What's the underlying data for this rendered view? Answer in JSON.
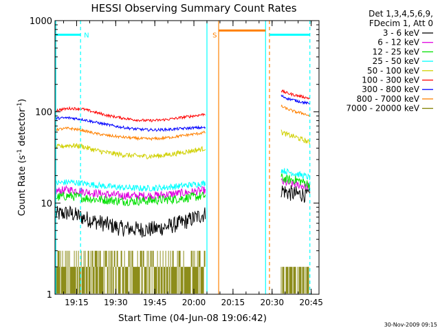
{
  "chart_data": {
    "type": "line",
    "title": "HESSI Observing Summary Count Rates",
    "xlabel": "Start Time (04-Jun-08 19:06:42)",
    "ylabel_main": "Count Rate (s",
    "ylabel_sup1": "-1",
    "ylabel_mid": " detector",
    "ylabel_sup2": "-1",
    "ylabel_end": ")",
    "y_scale": "log",
    "ylim": [
      1,
      1000
    ],
    "xlim_minutes": [
      1146.7,
      1248
    ],
    "x_ticks": [
      {
        "label": "19:15",
        "minute": 1155
      },
      {
        "label": "19:30",
        "minute": 1170
      },
      {
        "label": "19:45",
        "minute": 1185
      },
      {
        "label": "20:00",
        "minute": 1200
      },
      {
        "label": "20:15",
        "minute": 1215
      },
      {
        "label": "20:30",
        "minute": 1230
      },
      {
        "label": "20:45",
        "minute": 1245
      }
    ],
    "y_ticks": [
      {
        "label": "1",
        "value": 1
      },
      {
        "label": "10",
        "value": 10
      },
      {
        "label": "100",
        "value": 100
      },
      {
        "label": "1000",
        "value": 1000
      }
    ],
    "legend_placement": "right",
    "legend_header": [
      "Det 1,3,4,5,6,9,",
      "FDecim 1, Att 0"
    ],
    "series": [
      {
        "name": "3 - 6 keV",
        "color": "#000000",
        "segments": [
          {
            "x": [
              1147,
              1152,
              1157,
              1162,
              1167,
              1172,
              1177,
              1182,
              1187,
              1192,
              1197,
              1202,
              1204.5
            ],
            "y": [
              7.5,
              7.8,
              7.0,
              6.3,
              5.8,
              5.3,
              5.2,
              5.1,
              5.3,
              5.7,
              6.3,
              7.2,
              7.6
            ]
          },
          {
            "x": [
              1233.5,
              1236,
              1239,
              1242,
              1244.5
            ],
            "y": [
              14,
              13,
              12.5,
              12.5,
              12
            ]
          }
        ]
      },
      {
        "name": "6 - 12 keV",
        "color": "#e000e0",
        "segments": [
          {
            "x": [
              1147,
              1152,
              1157,
              1162,
              1167,
              1172,
              1177,
              1182,
              1187,
              1192,
              1197,
              1202,
              1204.5
            ],
            "y": [
              13.5,
              14,
              13.5,
              12.8,
              12.4,
              12.1,
              12.0,
              12.0,
              12.2,
              12.6,
              13.0,
              13.5,
              13.8
            ]
          },
          {
            "x": [
              1233.5,
              1236,
              1239,
              1242,
              1244.5
            ],
            "y": [
              17,
              16.5,
              16,
              15.5,
              15
            ]
          }
        ]
      },
      {
        "name": "12 - 25 keV",
        "color": "#00e000",
        "segments": [
          {
            "x": [
              1147,
              1152,
              1157,
              1162,
              1167,
              1172,
              1177,
              1182,
              1187,
              1192,
              1197,
              1202,
              1204.5
            ],
            "y": [
              11.5,
              12,
              11.5,
              11,
              10.8,
              10.5,
              10.5,
              10.6,
              10.8,
              11.0,
              11.4,
              11.8,
              12.0
            ]
          },
          {
            "x": [
              1233.5,
              1236,
              1239,
              1242,
              1244.5
            ],
            "y": [
              19,
              18,
              18,
              17,
              16
            ]
          }
        ]
      },
      {
        "name": "25 - 50 keV",
        "color": "#00ffff",
        "segments": [
          {
            "x": [
              1147,
              1152,
              1157,
              1162,
              1167,
              1172,
              1177,
              1182,
              1187,
              1192,
              1197,
              1202,
              1204.5
            ],
            "y": [
              16.5,
              17,
              16.5,
              15.8,
              15.2,
              14.8,
              14.6,
              14.5,
              14.7,
              15.1,
              15.6,
              16.2,
              16.5
            ]
          },
          {
            "x": [
              1233.5,
              1236,
              1239,
              1242,
              1244.5
            ],
            "y": [
              23,
              22,
              21,
              20,
              19
            ]
          }
        ]
      },
      {
        "name": "50 - 100 keV",
        "color": "#d0d000",
        "segments": [
          {
            "x": [
              1147,
              1152,
              1157,
              1162,
              1167,
              1172,
              1177,
              1182,
              1187,
              1192,
              1197,
              1202,
              1204.5
            ],
            "y": [
              41,
              43,
              42,
              38,
              35.5,
              34,
              33,
              32.5,
              33,
              34.5,
              36.5,
              38.5,
              40
            ]
          },
          {
            "x": [
              1233.5,
              1236,
              1239,
              1242,
              1244.5
            ],
            "y": [
              60,
              56,
              53,
              49,
              46
            ]
          }
        ]
      },
      {
        "name": "100 - 300 keV",
        "color": "#ff0000",
        "segments": [
          {
            "x": [
              1147,
              1152,
              1157,
              1162,
              1167,
              1172,
              1177,
              1182,
              1187,
              1192,
              1197,
              1202,
              1204.5
            ],
            "y": [
              104,
              109,
              108,
              99,
              91,
              86,
              82,
              80,
              81,
              84,
              88,
              92,
              95
            ]
          },
          {
            "x": [
              1233.5,
              1236,
              1239,
              1242,
              1244.5
            ],
            "y": [
              170,
              160,
              152,
              146,
              140
            ]
          }
        ]
      },
      {
        "name": "300 - 800 keV",
        "color": "#0000ff",
        "segments": [
          {
            "x": [
              1147,
              1152,
              1157,
              1162,
              1167,
              1172,
              1177,
              1182,
              1187,
              1192,
              1197,
              1202,
              1204.5
            ],
            "y": [
              85,
              86,
              83,
              77,
              72,
              68,
              65,
              63.5,
              63.5,
              64.5,
              66,
              67,
              67
            ]
          },
          {
            "x": [
              1233.5,
              1236,
              1239,
              1242,
              1244.5
            ],
            "y": [
              150,
              140,
              133,
              127,
              122
            ]
          }
        ]
      },
      {
        "name": "800 - 7000 keV",
        "color": "#ff8000",
        "segments": [
          {
            "x": [
              1147,
              1152,
              1157,
              1162,
              1167,
              1172,
              1177,
              1182,
              1187,
              1192,
              1197,
              1202,
              1204.5
            ],
            "y": [
              64,
              66,
              63,
              58,
              55,
              53,
              51.5,
              50.5,
              51,
              53,
              55.5,
              58,
              60
            ]
          },
          {
            "x": [
              1233.5,
              1236,
              1239,
              1242,
              1244.5
            ],
            "y": [
              115,
              107,
              100,
              96,
              90
            ]
          }
        ]
      },
      {
        "name": "7000 - 20000 keV",
        "color": "#808000",
        "segments": [
          {
            "x": [
              1147,
              1204.5
            ],
            "y": [
              2,
              2
            ]
          },
          {
            "x": [
              1233.5,
              1244.5
            ],
            "y": [
              1.5,
              1.5
            ]
          }
        ]
      }
    ],
    "annotations": [
      {
        "label": "N",
        "color": "#00ffff",
        "minute": 1156.5
      },
      {
        "label": "S",
        "color": "#ff8000",
        "minute": 1209
      }
    ],
    "status_bars": [
      {
        "color": "#00ffff",
        "x": [
          1147,
          1156.5
        ],
        "y": 700
      },
      {
        "color": "#ff8000",
        "x": [
          1209.5,
          1227.5
        ],
        "y": 780
      },
      {
        "color": "#00ffff",
        "x": [
          1229,
          1244.5
        ],
        "y": 700
      }
    ],
    "vertical_lines": [
      {
        "color": "#00ffff",
        "minute": 1147,
        "style": "solid"
      },
      {
        "color": "#00ffff",
        "minute": 1156.5,
        "style": "dashed"
      },
      {
        "color": "#00ffff",
        "minute": 1205,
        "style": "solid"
      },
      {
        "color": "#ff8000",
        "minute": 1209.5,
        "style": "solid"
      },
      {
        "color": "#00ffff",
        "minute": 1227.5,
        "style": "solid"
      },
      {
        "color": "#ff8000",
        "minute": 1229,
        "style": "dashed"
      },
      {
        "color": "#00ffff",
        "minute": 1244.5,
        "style": "dashed"
      }
    ],
    "timestamp": "30-Nov-2009 09:15"
  }
}
